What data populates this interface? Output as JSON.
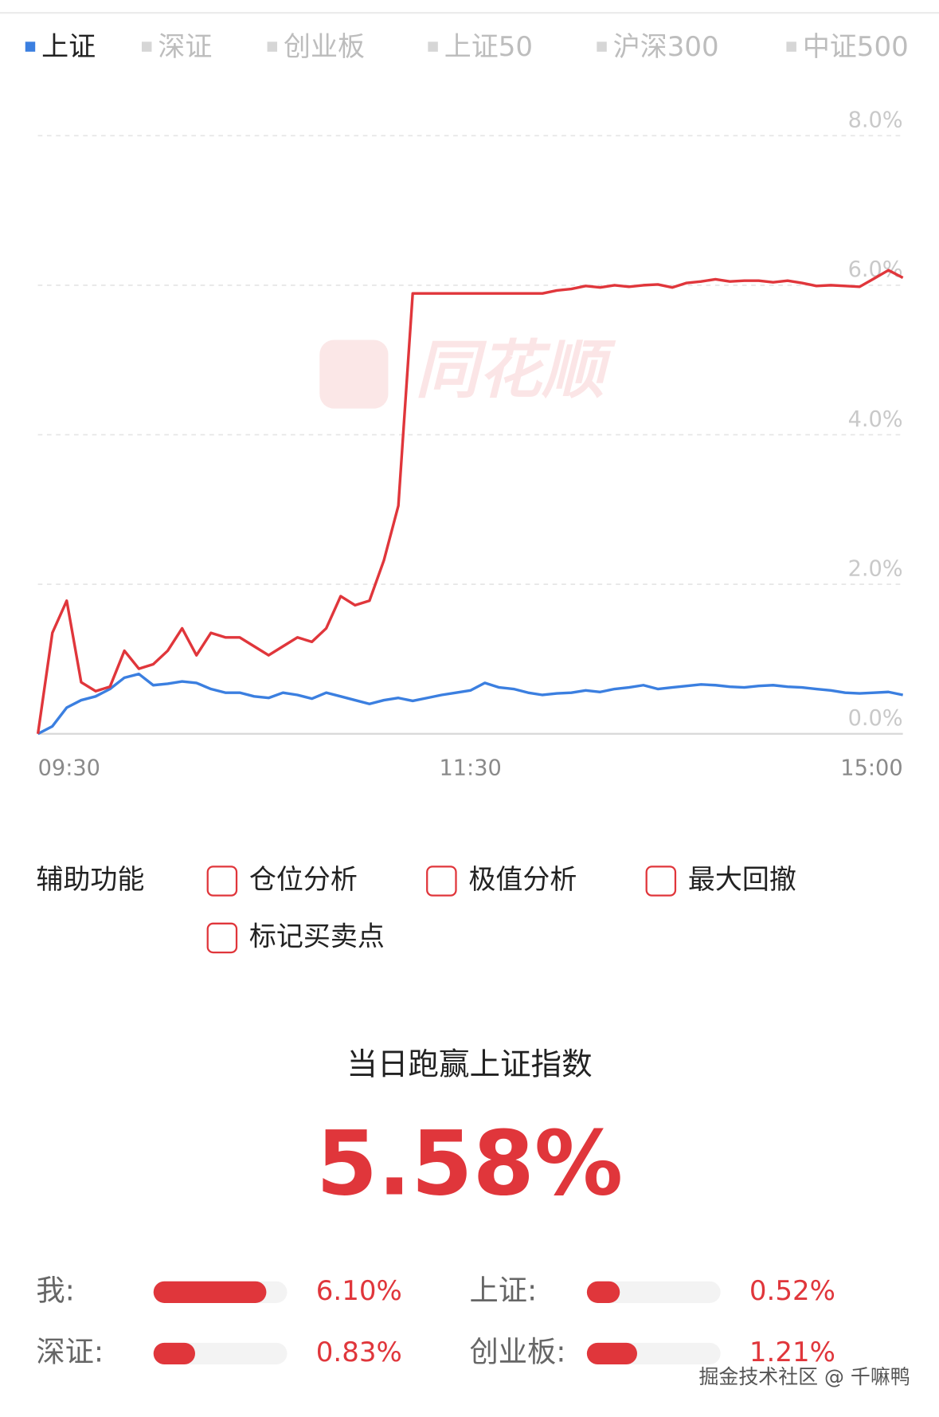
{
  "tabs": {
    "items": [
      "上证",
      "深证",
      "创业板",
      "上证50",
      "沪深300",
      "中证500"
    ],
    "active": 0
  },
  "chart_data": {
    "type": "line",
    "watermark": "同花顺",
    "x": [
      0,
      4,
      8,
      12,
      16,
      20,
      24,
      28,
      32,
      36,
      40,
      44,
      48,
      52,
      56,
      60,
      64,
      68,
      72,
      76,
      80,
      84,
      88,
      92,
      96,
      100,
      104,
      108,
      112,
      116,
      120,
      124,
      128,
      132,
      136,
      140,
      144,
      148,
      152,
      156,
      160,
      164,
      168,
      172,
      176,
      180,
      184,
      188,
      192,
      196,
      200,
      204,
      208,
      212,
      216,
      220,
      224,
      228,
      232,
      236,
      240
    ],
    "xlim": [
      0,
      240
    ],
    "xticks": [
      {
        "value": 0,
        "label": "09:30"
      },
      {
        "value": 120,
        "label": "11:30"
      },
      {
        "value": 240,
        "label": "15:00"
      }
    ],
    "ylim": [
      0,
      8
    ],
    "yticks": [
      {
        "value": 0,
        "label": "0.0%"
      },
      {
        "value": 2,
        "label": "2.0%"
      },
      {
        "value": 4,
        "label": "4.0%"
      },
      {
        "value": 6,
        "label": "6.0%"
      },
      {
        "value": 8,
        "label": "8.0%"
      }
    ],
    "grid": true,
    "series": [
      {
        "color": "#e0363b",
        "values": [
          0,
          1.35,
          1.78,
          0.69,
          0.57,
          0.63,
          1.11,
          0.87,
          0.93,
          1.11,
          1.41,
          1.05,
          1.35,
          1.29,
          1.29,
          1.17,
          1.05,
          1.17,
          1.29,
          1.23,
          1.41,
          1.84,
          1.72,
          1.78,
          2.32,
          3.05,
          5.89,
          5.89,
          5.89,
          5.89,
          5.89,
          5.89,
          5.89,
          5.89,
          5.89,
          5.89,
          5.93,
          5.95,
          5.99,
          5.97,
          6.0,
          5.98,
          6.0,
          6.01,
          5.97,
          6.03,
          6.05,
          6.08,
          6.05,
          6.06,
          6.06,
          6.04,
          6.06,
          6.03,
          5.99,
          6.0,
          5.99,
          5.98,
          6.09,
          6.2,
          6.1
        ]
      },
      {
        "color": "#3b7fe0",
        "values": [
          0,
          0.1,
          0.35,
          0.45,
          0.5,
          0.6,
          0.75,
          0.8,
          0.65,
          0.67,
          0.7,
          0.68,
          0.6,
          0.55,
          0.55,
          0.5,
          0.48,
          0.55,
          0.52,
          0.47,
          0.55,
          0.5,
          0.45,
          0.4,
          0.45,
          0.48,
          0.44,
          0.48,
          0.52,
          0.55,
          0.58,
          0.68,
          0.62,
          0.6,
          0.55,
          0.52,
          0.54,
          0.55,
          0.58,
          0.56,
          0.6,
          0.62,
          0.65,
          0.6,
          0.62,
          0.64,
          0.66,
          0.65,
          0.63,
          0.62,
          0.64,
          0.65,
          0.63,
          0.62,
          0.6,
          0.58,
          0.55,
          0.54,
          0.55,
          0.56,
          0.52
        ]
      }
    ]
  },
  "helpers": {
    "label": "辅助功能",
    "options": [
      "仓位分析",
      "极值分析",
      "最大回撤",
      "标记买卖点"
    ]
  },
  "summary": {
    "title": "当日跑赢上证指数",
    "value": "5.58%"
  },
  "comparisons": {
    "labels": [
      "我:",
      "上证:",
      "深证:",
      "创业板:"
    ],
    "values": [
      6.1,
      0.52,
      0.83,
      1.21
    ],
    "value_labels": [
      "6.10%",
      "0.52%",
      "0.83%",
      "1.21%"
    ]
  },
  "footer": "掘金技术社区 @ 千嘛鸭"
}
